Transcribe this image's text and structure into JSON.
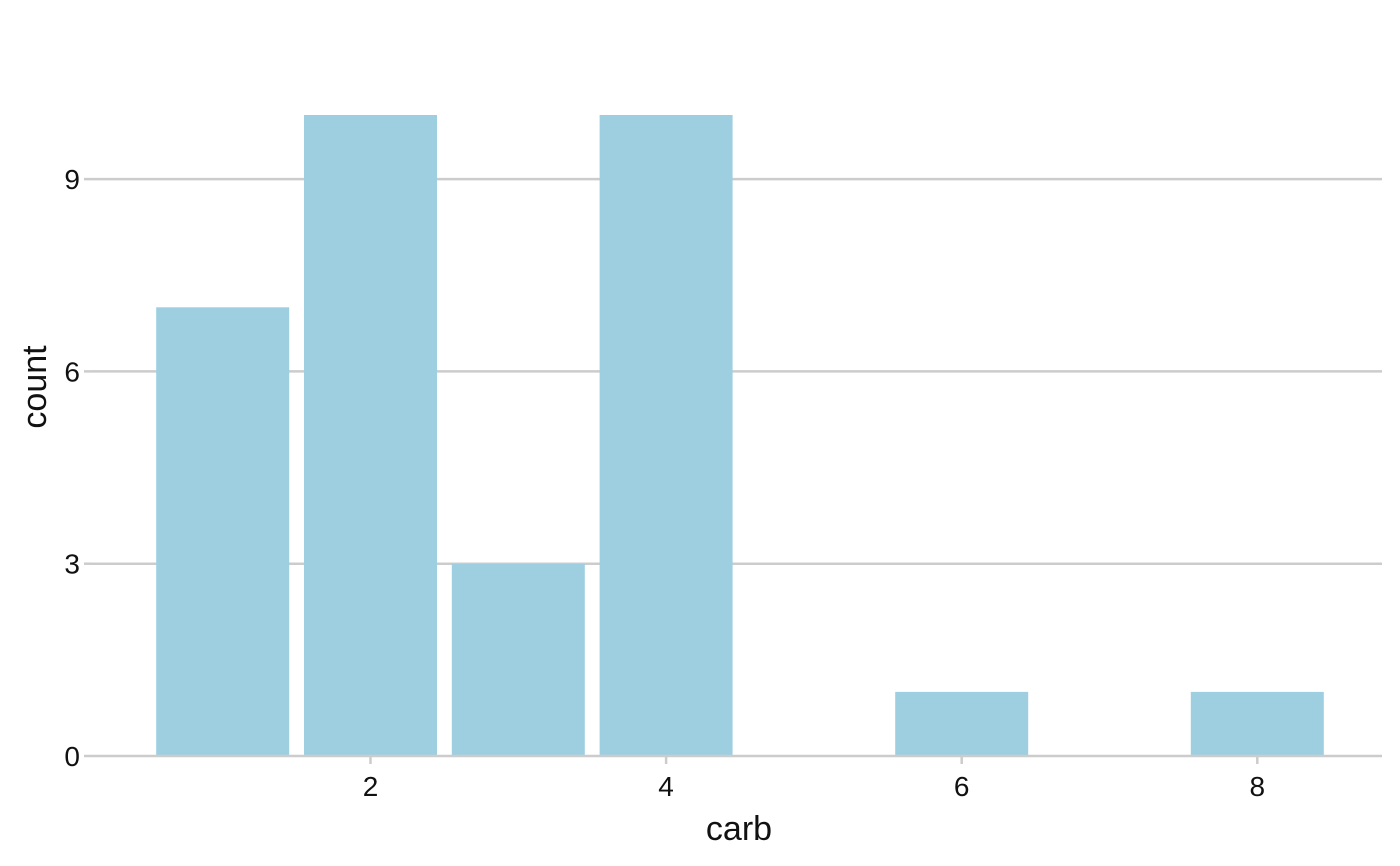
{
  "chart_data": {
    "type": "bar",
    "x": [
      1,
      2,
      3,
      4,
      6,
      8
    ],
    "values": [
      7,
      10,
      3,
      10,
      1,
      1
    ],
    "title": "",
    "xlabel": "carb",
    "ylabel": "count",
    "xlim": [
      0.5,
      8.5
    ],
    "ylim": [
      0,
      10
    ],
    "x_ticks": [
      2,
      4,
      6,
      8
    ],
    "y_ticks": [
      0,
      3,
      6,
      9
    ],
    "grid": "horizontal",
    "legend": "none",
    "bar_color": "#9ecfe1",
    "grid_color": "#cccccc",
    "axis_color": "#cccccc"
  }
}
